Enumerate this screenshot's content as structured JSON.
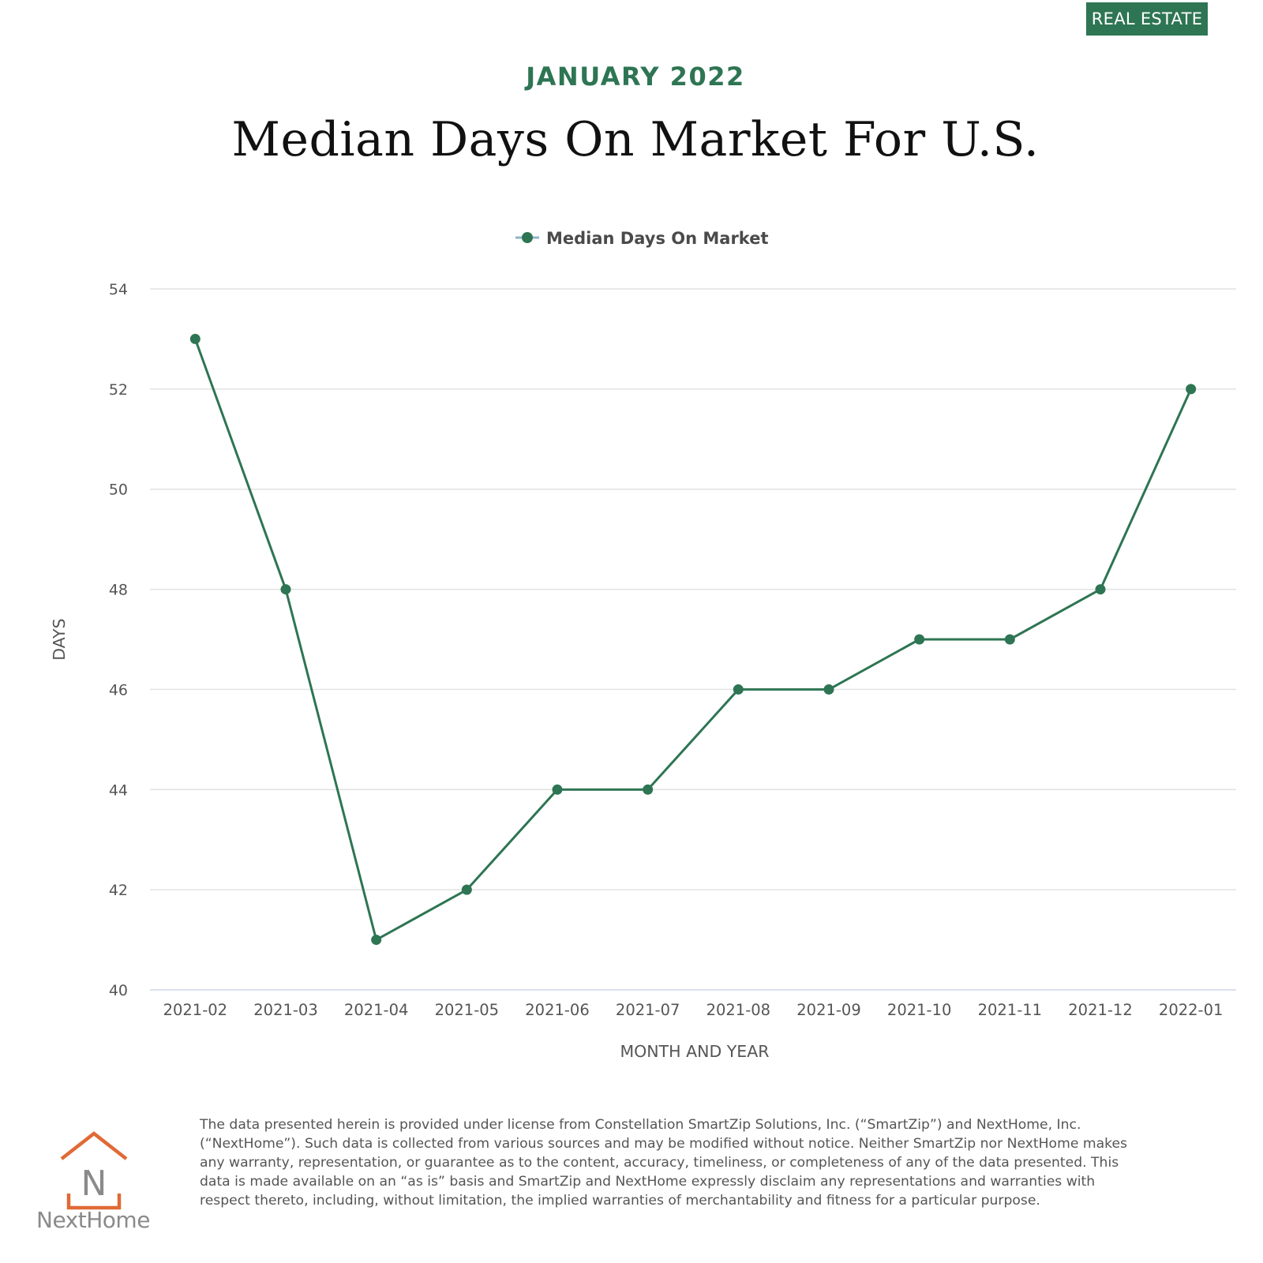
{
  "badge": {
    "label": "REAL ESTATE"
  },
  "header": {
    "subtitle": "JANUARY 2022",
    "title": "Median Days On Market For U.S."
  },
  "colors": {
    "accent": "#2e7553",
    "grid": "#e2e2e2",
    "logo_orange": "#e06a35"
  },
  "chart_data": {
    "type": "line",
    "title": "Median Days On Market For U.S.",
    "xlabel": "MONTH AND YEAR",
    "ylabel": "DAYS",
    "legend": {
      "label": "Median Days On Market",
      "placement": "top-center"
    },
    "categories": [
      "2021-02",
      "2021-03",
      "2021-04",
      "2021-05",
      "2021-06",
      "2021-07",
      "2021-08",
      "2021-09",
      "2021-10",
      "2021-11",
      "2021-12",
      "2022-01"
    ],
    "series": [
      {
        "name": "Median Days On Market",
        "values": [
          53,
          48,
          41,
          42,
          44,
          44,
          46,
          46,
          47,
          47,
          48,
          52
        ]
      }
    ],
    "ylim": [
      40,
      54
    ],
    "yticks": [
      40,
      42,
      44,
      46,
      48,
      50,
      52,
      54
    ],
    "grid": true
  },
  "footer": {
    "logo_text": "NextHome",
    "logo_letter": "N",
    "disclaimer": "The data presented herein is provided under license from Constellation SmartZip Solutions, Inc. (“SmartZip”) and NextHome, Inc. (“NextHome”). Such data is collected from various sources and may be modified without notice. Neither SmartZip nor NextHome makes any warranty, representation, or guarantee as to the content, accuracy, timeliness, or completeness of any of the data presented. This data is made available on an “as is” basis and SmartZip and NextHome expressly disclaim any representations and warranties with respect thereto, including, without limitation, the implied warranties of merchantability and fitness for a particular purpose."
  }
}
